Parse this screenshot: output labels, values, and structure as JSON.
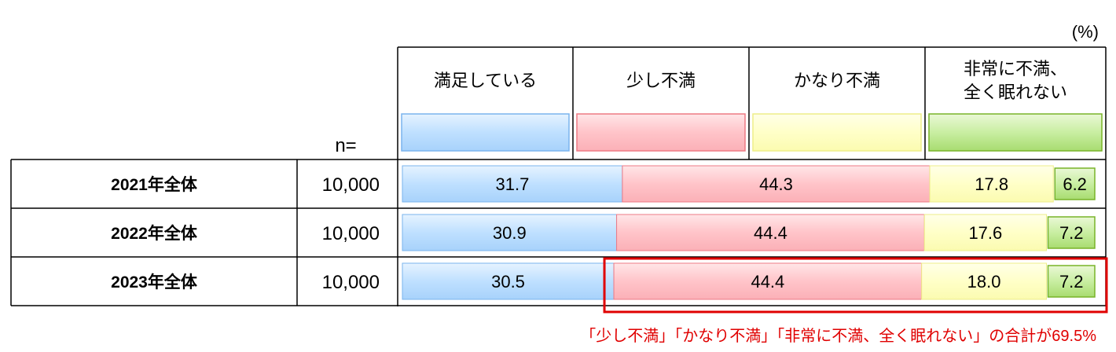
{
  "chart_data": {
    "type": "bar",
    "orientation": "horizontal-stacked",
    "unit_note": "(%)",
    "n_header": "n=",
    "categories": [
      "満足している",
      "少し不満",
      "かなり不満",
      "非常に不満、全く眠れない"
    ],
    "category_lines": [
      [
        "満足している"
      ],
      [
        "少し不満"
      ],
      [
        "かなり不満"
      ],
      [
        "非常に不満、",
        "全く眠れない"
      ]
    ],
    "rows": [
      {
        "label": "2021年全体",
        "n": "10,000",
        "values": [
          31.7,
          44.3,
          17.8,
          6.2
        ]
      },
      {
        "label": "2022年全体",
        "n": "10,000",
        "values": [
          30.9,
          44.4,
          17.6,
          7.2
        ]
      },
      {
        "label": "2023年全体",
        "n": "10,000",
        "values": [
          30.5,
          44.4,
          18.0,
          7.2
        ]
      }
    ],
    "colors": [
      "#bfe0ff",
      "#ffc4c9",
      "#ffffc8",
      "#c9eea2"
    ],
    "border_colors": [
      "#7ab4ee",
      "#ee7a84",
      "#eeee88",
      "#78b428"
    ],
    "highlight": {
      "row": 2,
      "from_category": 1,
      "color": "#e00000"
    },
    "annotation": "「少し不満」「かなり不満」「非常に不満、全く眠れない」の合計が69.5%",
    "annotation_color": "#e00000"
  }
}
